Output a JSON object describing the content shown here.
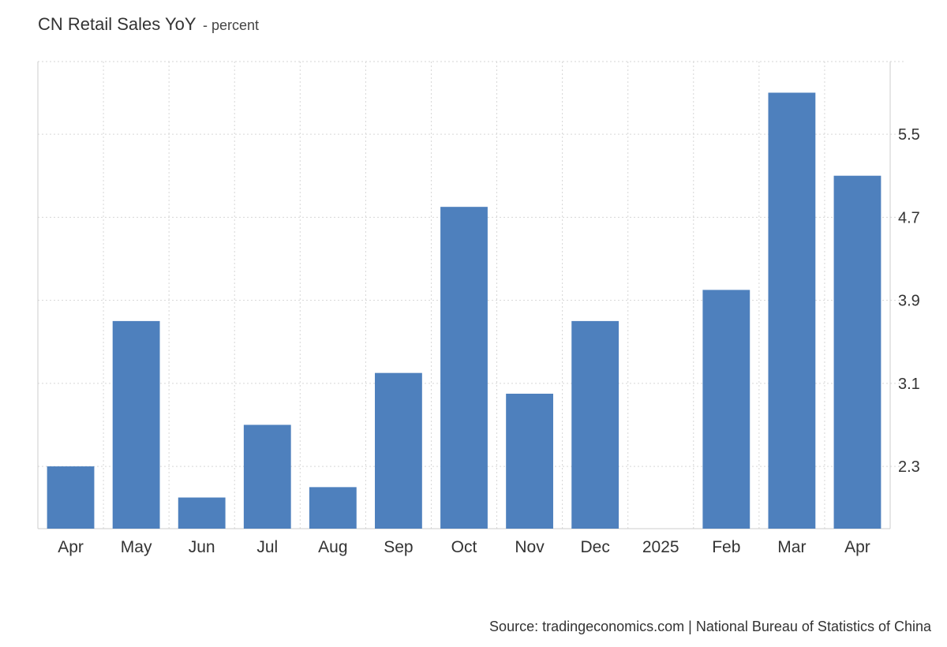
{
  "title": "CN Retail Sales YoY",
  "subtitle": "- percent",
  "source": "Source: tradingeconomics.com | National Bureau of Statistics of China",
  "colors": {
    "bar": "#4e80bd",
    "grid": "#d6d6d6",
    "axis": "#cccccc"
  },
  "chart_data": {
    "type": "bar",
    "categories": [
      "Apr",
      "May",
      "Jun",
      "Jul",
      "Aug",
      "Sep",
      "Oct",
      "Nov",
      "Dec",
      "2025",
      "Feb",
      "Mar",
      "Apr"
    ],
    "values": [
      2.3,
      3.7,
      2.0,
      2.7,
      2.1,
      3.2,
      4.8,
      3.0,
      3.7,
      null,
      4.0,
      5.9,
      5.1
    ],
    "yticks": [
      2.3,
      3.1,
      3.9,
      4.7,
      5.5
    ],
    "ylim": [
      1.7,
      6.2
    ],
    "y_axis_side": "right",
    "grid": true,
    "legend": "none"
  }
}
